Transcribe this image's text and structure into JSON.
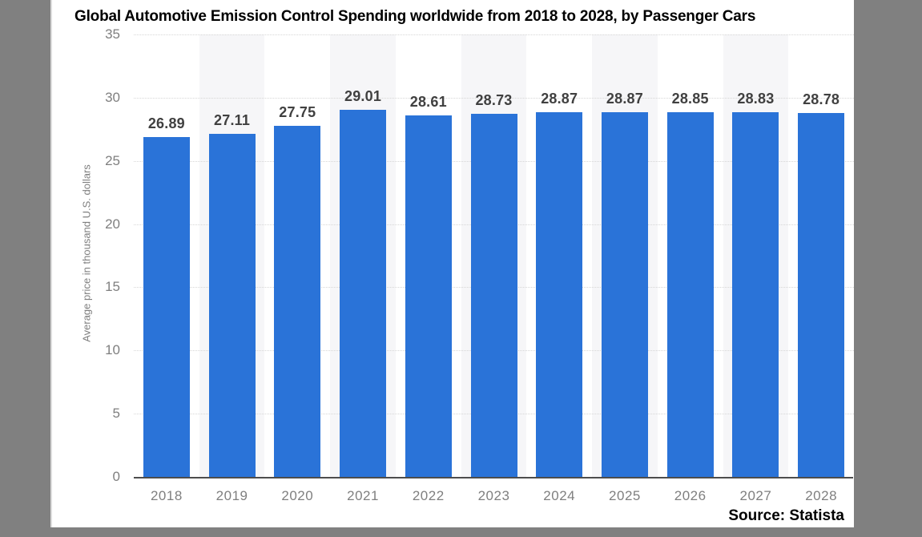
{
  "chart_data": {
    "type": "bar",
    "title": "Global Automotive Emission Control Spending worldwide from 2018 to 2028, by Passenger Cars",
    "categories": [
      "2018",
      "2019",
      "2020",
      "2021",
      "2022",
      "2023",
      "2024",
      "2025",
      "2026",
      "2027",
      "2028"
    ],
    "values": [
      26.89,
      27.11,
      27.75,
      29.01,
      28.61,
      28.73,
      28.87,
      28.87,
      28.85,
      28.83,
      28.78
    ],
    "value_label_decimals": 2,
    "xlabel": "",
    "ylabel": "Average price in thousand U.S. dollars",
    "ylim": [
      0,
      35
    ],
    "yticks": [
      0,
      5,
      10,
      15,
      20,
      25,
      30,
      35
    ],
    "grid": "horizontal-dotted",
    "legend": "none",
    "plot_bands": "alternating columns on 2019, 2021, 2023, 2025, 2027",
    "colors": {
      "bar": "#2a73d8",
      "plot_band": "#f6f6f8",
      "gridline": "#d6d6d6",
      "axis_baseline": "#4d4d4d",
      "tick_text": "#7f7f7f",
      "value_label_text": "#404040",
      "title_text": "#000000",
      "panel_background": "#ffffff",
      "desktop_background": "#808080"
    }
  },
  "source": {
    "label": "Source: Statista"
  }
}
